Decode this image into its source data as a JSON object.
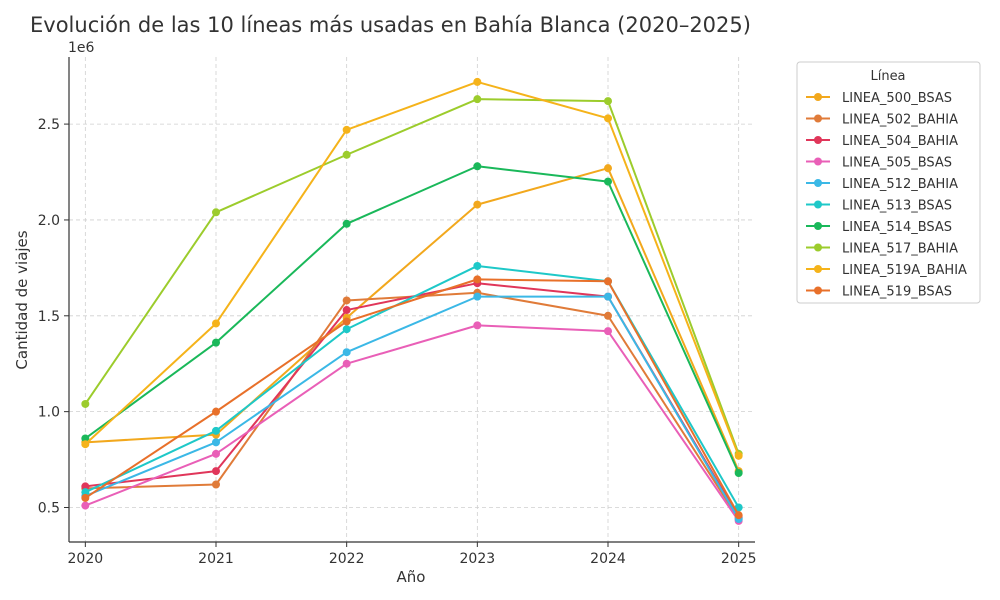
{
  "chart_data": {
    "type": "line",
    "title": "Evolución de las 10 líneas más usadas en Bahía Blanca (2020–2025)",
    "xlabel": "Año",
    "ylabel": "Cantidad de viajes",
    "y_offset_label": "1e6",
    "x": [
      2020,
      2021,
      2022,
      2023,
      2024,
      2025
    ],
    "x_tick_labels": [
      "2020",
      "2021",
      "2022",
      "2023",
      "2024",
      "2025"
    ],
    "y_ticks": [
      0.5,
      1.0,
      1.5,
      2.0,
      2.5
    ],
    "y_tick_labels": [
      "0.5",
      "1.0",
      "1.5",
      "2.0",
      "2.5"
    ],
    "ylim": [
      0.32,
      2.85
    ],
    "y_scale_factor": 1000000,
    "grid": true,
    "legend_title": "Línea",
    "legend_position": "outside-right",
    "series": [
      {
        "name": "LINEA_500_BSAS",
        "color": "#f2a81d",
        "values": [
          0.84,
          0.88,
          1.49,
          2.08,
          2.27,
          0.69
        ]
      },
      {
        "name": "LINEA_502_BAHIA",
        "color": "#e07b39",
        "values": [
          0.6,
          0.62,
          1.58,
          1.62,
          1.5,
          0.44
        ]
      },
      {
        "name": "LINEA_504_BAHIA",
        "color": "#e0365a",
        "values": [
          0.61,
          0.69,
          1.53,
          1.67,
          1.6,
          0.45
        ]
      },
      {
        "name": "LINEA_505_BSAS",
        "color": "#e95fb7",
        "values": [
          0.51,
          0.78,
          1.25,
          1.45,
          1.42,
          0.43
        ]
      },
      {
        "name": "LINEA_512_BAHIA",
        "color": "#3bb8e6",
        "values": [
          0.56,
          0.84,
          1.31,
          1.6,
          1.6,
          0.44
        ]
      },
      {
        "name": "LINEA_513_BSAS",
        "color": "#1ec8c8",
        "values": [
          0.58,
          0.9,
          1.43,
          1.76,
          1.68,
          0.5
        ]
      },
      {
        "name": "LINEA_514_BSAS",
        "color": "#1ab85a",
        "values": [
          0.86,
          1.36,
          1.98,
          2.28,
          2.2,
          0.68
        ]
      },
      {
        "name": "LINEA_517_BAHIA",
        "color": "#9ccc2c",
        "values": [
          1.04,
          2.04,
          2.34,
          2.63,
          2.62,
          0.78
        ]
      },
      {
        "name": "LINEA_519A_BAHIA",
        "color": "#f5b31a",
        "values": [
          0.83,
          1.46,
          2.47,
          2.72,
          2.53,
          0.77
        ]
      },
      {
        "name": "LINEA_519_BSAS",
        "color": "#e8702a",
        "values": [
          0.55,
          1.0,
          1.47,
          1.69,
          1.68,
          0.46
        ]
      }
    ]
  }
}
